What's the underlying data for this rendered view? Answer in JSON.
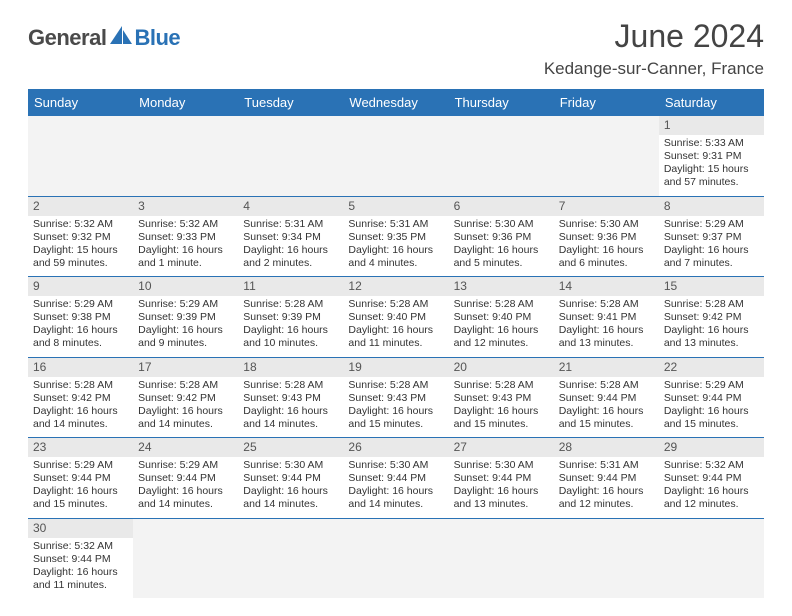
{
  "logo": {
    "text1": "General",
    "text2": "Blue"
  },
  "title": "June 2024",
  "location": "Kedange-sur-Canner, France",
  "colors": {
    "header_bg": "#2a72b5",
    "header_text": "#ffffff",
    "rule": "#2a72b5",
    "daynum_bg": "#e9e9e9",
    "logo_gray": "#4a4a4a",
    "logo_blue": "#2a72b5"
  },
  "weekdays": [
    "Sunday",
    "Monday",
    "Tuesday",
    "Wednesday",
    "Thursday",
    "Friday",
    "Saturday"
  ],
  "weeks": [
    [
      null,
      null,
      null,
      null,
      null,
      null,
      {
        "d": "1",
        "sr": "5:33 AM",
        "ss": "9:31 PM",
        "dl": "15 hours and 57 minutes."
      }
    ],
    [
      {
        "d": "2",
        "sr": "5:32 AM",
        "ss": "9:32 PM",
        "dl": "15 hours and 59 minutes."
      },
      {
        "d": "3",
        "sr": "5:32 AM",
        "ss": "9:33 PM",
        "dl": "16 hours and 1 minute."
      },
      {
        "d": "4",
        "sr": "5:31 AM",
        "ss": "9:34 PM",
        "dl": "16 hours and 2 minutes."
      },
      {
        "d": "5",
        "sr": "5:31 AM",
        "ss": "9:35 PM",
        "dl": "16 hours and 4 minutes."
      },
      {
        "d": "6",
        "sr": "5:30 AM",
        "ss": "9:36 PM",
        "dl": "16 hours and 5 minutes."
      },
      {
        "d": "7",
        "sr": "5:30 AM",
        "ss": "9:36 PM",
        "dl": "16 hours and 6 minutes."
      },
      {
        "d": "8",
        "sr": "5:29 AM",
        "ss": "9:37 PM",
        "dl": "16 hours and 7 minutes."
      }
    ],
    [
      {
        "d": "9",
        "sr": "5:29 AM",
        "ss": "9:38 PM",
        "dl": "16 hours and 8 minutes."
      },
      {
        "d": "10",
        "sr": "5:29 AM",
        "ss": "9:39 PM",
        "dl": "16 hours and 9 minutes."
      },
      {
        "d": "11",
        "sr": "5:28 AM",
        "ss": "9:39 PM",
        "dl": "16 hours and 10 minutes."
      },
      {
        "d": "12",
        "sr": "5:28 AM",
        "ss": "9:40 PM",
        "dl": "16 hours and 11 minutes."
      },
      {
        "d": "13",
        "sr": "5:28 AM",
        "ss": "9:40 PM",
        "dl": "16 hours and 12 minutes."
      },
      {
        "d": "14",
        "sr": "5:28 AM",
        "ss": "9:41 PM",
        "dl": "16 hours and 13 minutes."
      },
      {
        "d": "15",
        "sr": "5:28 AM",
        "ss": "9:42 PM",
        "dl": "16 hours and 13 minutes."
      }
    ],
    [
      {
        "d": "16",
        "sr": "5:28 AM",
        "ss": "9:42 PM",
        "dl": "16 hours and 14 minutes."
      },
      {
        "d": "17",
        "sr": "5:28 AM",
        "ss": "9:42 PM",
        "dl": "16 hours and 14 minutes."
      },
      {
        "d": "18",
        "sr": "5:28 AM",
        "ss": "9:43 PM",
        "dl": "16 hours and 14 minutes."
      },
      {
        "d": "19",
        "sr": "5:28 AM",
        "ss": "9:43 PM",
        "dl": "16 hours and 15 minutes."
      },
      {
        "d": "20",
        "sr": "5:28 AM",
        "ss": "9:43 PM",
        "dl": "16 hours and 15 minutes."
      },
      {
        "d": "21",
        "sr": "5:28 AM",
        "ss": "9:44 PM",
        "dl": "16 hours and 15 minutes."
      },
      {
        "d": "22",
        "sr": "5:29 AM",
        "ss": "9:44 PM",
        "dl": "16 hours and 15 minutes."
      }
    ],
    [
      {
        "d": "23",
        "sr": "5:29 AM",
        "ss": "9:44 PM",
        "dl": "16 hours and 15 minutes."
      },
      {
        "d": "24",
        "sr": "5:29 AM",
        "ss": "9:44 PM",
        "dl": "16 hours and 14 minutes."
      },
      {
        "d": "25",
        "sr": "5:30 AM",
        "ss": "9:44 PM",
        "dl": "16 hours and 14 minutes."
      },
      {
        "d": "26",
        "sr": "5:30 AM",
        "ss": "9:44 PM",
        "dl": "16 hours and 14 minutes."
      },
      {
        "d": "27",
        "sr": "5:30 AM",
        "ss": "9:44 PM",
        "dl": "16 hours and 13 minutes."
      },
      {
        "d": "28",
        "sr": "5:31 AM",
        "ss": "9:44 PM",
        "dl": "16 hours and 12 minutes."
      },
      {
        "d": "29",
        "sr": "5:32 AM",
        "ss": "9:44 PM",
        "dl": "16 hours and 12 minutes."
      }
    ],
    [
      {
        "d": "30",
        "sr": "5:32 AM",
        "ss": "9:44 PM",
        "dl": "16 hours and 11 minutes."
      },
      null,
      null,
      null,
      null,
      null,
      null
    ]
  ],
  "labels": {
    "sunrise": "Sunrise: ",
    "sunset": "Sunset: ",
    "daylight": "Daylight: "
  }
}
